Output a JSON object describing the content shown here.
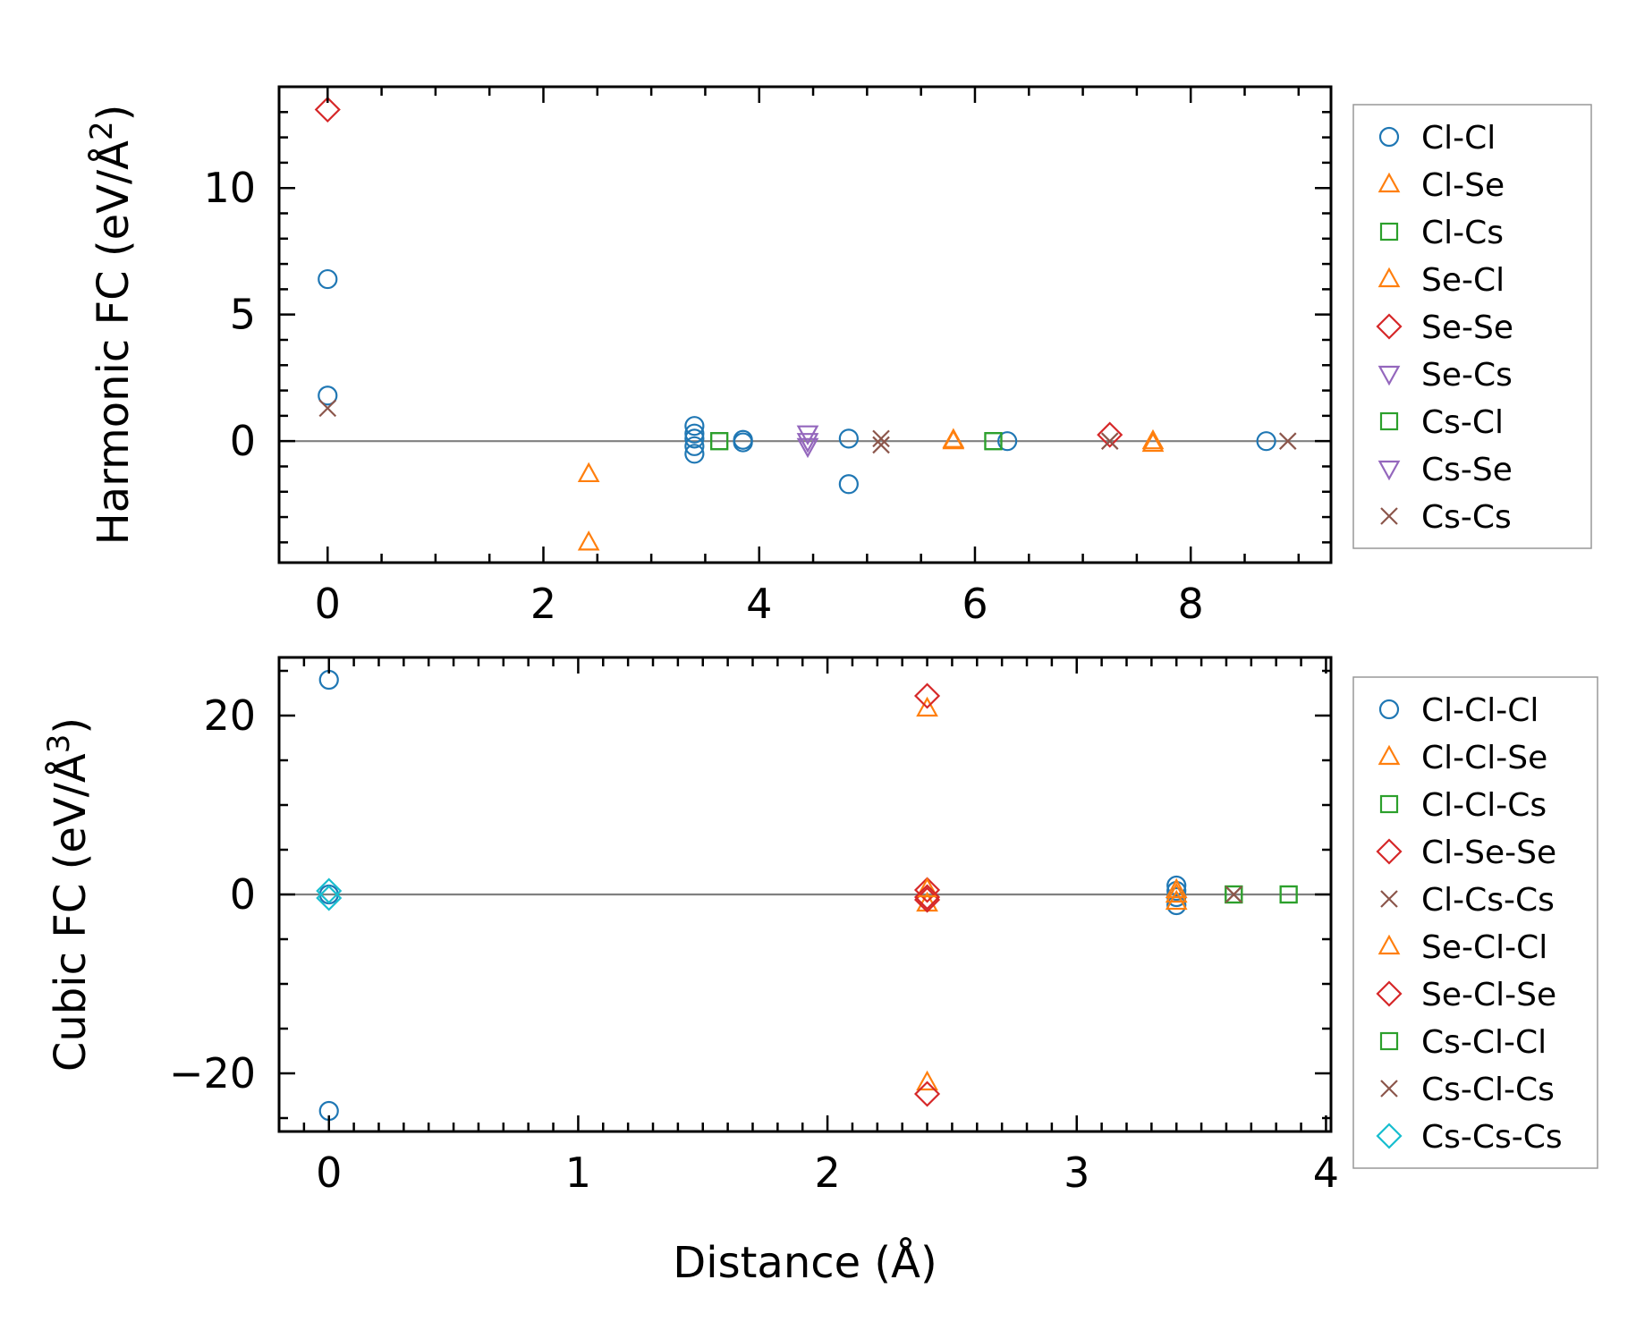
{
  "chart_data": [
    {
      "type": "scatter",
      "ylabel": "Harmonic FC (eV/Å",
      "ylabel_sup": "2",
      "ylabel_close": ")",
      "xlabel": "",
      "xlim": [
        -0.45,
        9.3
      ],
      "ylim": [
        -4.8,
        14.0
      ],
      "xticks": [
        0,
        2,
        4,
        6,
        8
      ],
      "xtick_labels": [
        "0",
        "2",
        "4",
        "6",
        "8"
      ],
      "yticks": [
        0,
        5,
        10
      ],
      "ytick_labels": [
        "0",
        "5",
        "10"
      ],
      "zero_line": true,
      "legend_position": "outside-right",
      "series": [
        {
          "name": "Cl-Cl",
          "marker": "circle",
          "color": "#1f77b4",
          "points": [
            [
              0,
              6.4
            ],
            [
              0,
              1.8
            ],
            [
              3.4,
              0.6
            ],
            [
              3.4,
              0.3
            ],
            [
              3.4,
              0.1
            ],
            [
              3.4,
              -0.2
            ],
            [
              3.4,
              -0.5
            ],
            [
              3.85,
              0.05
            ],
            [
              3.85,
              -0.05
            ],
            [
              4.83,
              0.1
            ],
            [
              4.83,
              -1.7
            ],
            [
              6.3,
              0.0
            ],
            [
              8.7,
              0.0
            ]
          ]
        },
        {
          "name": "Cl-Se",
          "marker": "triangle-up",
          "color": "#ff7f0e",
          "points": [
            [
              2.42,
              -1.3
            ],
            [
              2.42,
              -4.0
            ],
            [
              5.8,
              0.05
            ],
            [
              7.65,
              0.0
            ]
          ]
        },
        {
          "name": "Cl-Cs",
          "marker": "square",
          "color": "#2ca02c",
          "points": [
            [
              3.63,
              0.0
            ],
            [
              6.17,
              0.0
            ]
          ]
        },
        {
          "name": "Se-Cl",
          "marker": "triangle-up",
          "color": "#ff7f0e",
          "points": [
            [
              5.8,
              0.0
            ],
            [
              7.65,
              -0.1
            ]
          ]
        },
        {
          "name": "Se-Se",
          "marker": "diamond",
          "color": "#d62728",
          "points": [
            [
              0,
              13.1
            ],
            [
              7.25,
              0.25
            ]
          ]
        },
        {
          "name": "Se-Cs",
          "marker": "triangle-down",
          "color": "#9467bd",
          "points": [
            [
              4.45,
              0.3
            ],
            [
              4.45,
              0.0
            ]
          ]
        },
        {
          "name": "Cs-Cl",
          "marker": "square",
          "color": "#2ca02c",
          "points": [
            [
              3.63,
              0.0
            ],
            [
              6.17,
              0.0
            ]
          ]
        },
        {
          "name": "Cs-Se",
          "marker": "triangle-down",
          "color": "#9467bd",
          "points": [
            [
              4.45,
              -0.2
            ]
          ]
        },
        {
          "name": "Cs-Cs",
          "marker": "x",
          "color": "#8c564b",
          "points": [
            [
              0,
              1.3
            ],
            [
              5.13,
              0.1
            ],
            [
              5.13,
              -0.15
            ],
            [
              7.25,
              0.0
            ],
            [
              8.9,
              0.0
            ]
          ]
        }
      ]
    },
    {
      "type": "scatter",
      "ylabel": "Cubic FC (eV/Å",
      "ylabel_sup": "3",
      "ylabel_close": ")",
      "xlabel": "Distance (Å)",
      "xlim": [
        -0.2,
        4.02
      ],
      "ylim": [
        -26.5,
        26.5
      ],
      "xticks": [
        0,
        1,
        2,
        3,
        4
      ],
      "xtick_labels": [
        "0",
        "1",
        "2",
        "3",
        "4"
      ],
      "yticks": [
        -20,
        0,
        20
      ],
      "ytick_labels": [
        "−20",
        "0",
        "20"
      ],
      "zero_line": true,
      "legend_position": "outside-right",
      "series": [
        {
          "name": "Cl-Cl-Cl",
          "marker": "circle",
          "color": "#1f77b4",
          "points": [
            [
              0,
              24.0
            ],
            [
              0,
              -24.2
            ],
            [
              0,
              0.0
            ],
            [
              3.4,
              1.0
            ],
            [
              3.4,
              0.4
            ],
            [
              3.4,
              -0.3
            ],
            [
              3.4,
              -1.2
            ]
          ]
        },
        {
          "name": "Cl-Cl-Se",
          "marker": "triangle-up",
          "color": "#ff7f0e",
          "points": [
            [
              2.4,
              20.8
            ],
            [
              2.4,
              -21.0
            ],
            [
              2.4,
              -1.0
            ],
            [
              3.4,
              0.5
            ],
            [
              3.4,
              -0.8
            ]
          ]
        },
        {
          "name": "Cl-Cl-Cs",
          "marker": "square",
          "color": "#2ca02c",
          "points": [
            [
              3.63,
              0.0
            ],
            [
              3.85,
              0.0
            ]
          ]
        },
        {
          "name": "Cl-Se-Se",
          "marker": "diamond",
          "color": "#d62728",
          "points": [
            [
              2.4,
              22.2
            ],
            [
              2.4,
              -22.3
            ],
            [
              2.4,
              0.5
            ],
            [
              2.4,
              -0.6
            ]
          ]
        },
        {
          "name": "Cl-Cs-Cs",
          "marker": "x",
          "color": "#8c564b",
          "points": [
            [
              3.63,
              0.0
            ]
          ]
        },
        {
          "name": "Se-Cl-Cl",
          "marker": "triangle-up",
          "color": "#ff7f0e",
          "points": [
            [
              2.4,
              0.6
            ],
            [
              3.4,
              0.0
            ]
          ]
        },
        {
          "name": "Se-Cl-Se",
          "marker": "diamond",
          "color": "#d62728",
          "points": [
            [
              2.4,
              -0.3
            ]
          ]
        },
        {
          "name": "Cs-Cl-Cl",
          "marker": "square",
          "color": "#2ca02c",
          "points": [
            [
              3.63,
              0.0
            ],
            [
              3.85,
              0.0
            ]
          ]
        },
        {
          "name": "Cs-Cl-Cs",
          "marker": "x",
          "color": "#8c564b",
          "points": [
            [
              3.63,
              0.0
            ]
          ]
        },
        {
          "name": "Cs-Cs-Cs",
          "marker": "diamond",
          "color": "#17becf",
          "points": [
            [
              0,
              0.4
            ],
            [
              0,
              -0.4
            ]
          ]
        }
      ]
    }
  ]
}
